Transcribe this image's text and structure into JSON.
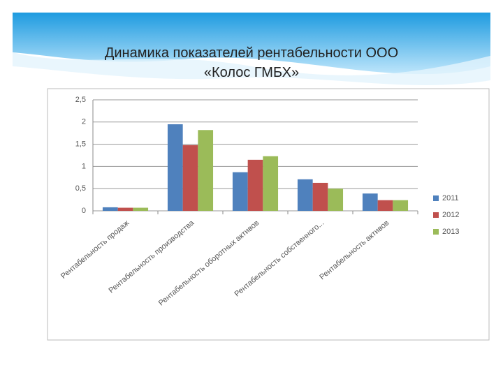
{
  "chart_data": {
    "type": "bar",
    "title": "Динамика показателей рентабельности ООО «Колос ГМБХ»",
    "categories": [
      "Рентабельность продаж",
      "Рентабельность производства",
      "Рентабельность оборотных активов",
      "Рентабельность собственного...",
      "Рентабельность активов"
    ],
    "series": [
      {
        "name": "2011",
        "color": "#4f81bd",
        "values": [
          0.08,
          1.95,
          0.87,
          0.71,
          0.39
        ]
      },
      {
        "name": "2012",
        "color": "#c0504d",
        "values": [
          0.07,
          1.48,
          1.15,
          0.63,
          0.24
        ]
      },
      {
        "name": "2013",
        "color": "#9bbb59",
        "values": [
          0.07,
          1.82,
          1.23,
          0.5,
          0.24
        ]
      }
    ],
    "ylim": [
      0,
      2.5
    ],
    "yticks": [
      0,
      {
        "value": 0.5,
        "label": "0,5"
      },
      1,
      {
        "value": 1.5,
        "label": "1,5"
      },
      2,
      {
        "value": 2.5,
        "label": "2,5"
      }
    ],
    "grid": true,
    "legend": "right"
  }
}
